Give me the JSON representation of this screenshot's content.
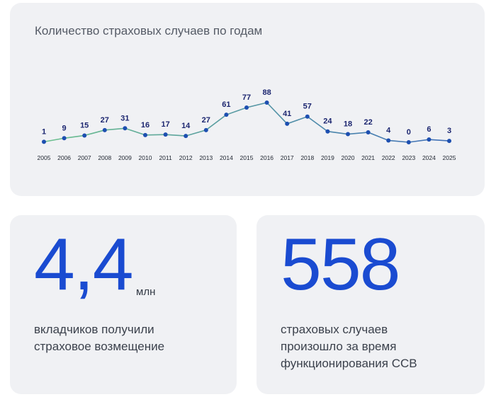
{
  "chart_data": {
    "type": "line",
    "title": "Количество страховых случаев по годам",
    "x": [
      "2005",
      "2006",
      "2007",
      "2008",
      "2009",
      "2010",
      "2011",
      "2012",
      "2013",
      "2014",
      "2015",
      "2016",
      "2017",
      "2018",
      "2019",
      "2020",
      "2021",
      "2022",
      "2023",
      "2024",
      "2025"
    ],
    "values": [
      1,
      9,
      15,
      27,
      31,
      16,
      17,
      14,
      27,
      61,
      77,
      88,
      41,
      57,
      24,
      18,
      22,
      4,
      0,
      6,
      3
    ],
    "ylim": [
      0,
      88
    ],
    "grid": false,
    "colors": {
      "line_start": "#6cc08e",
      "line_end": "#3f6fb8",
      "point": "#1d4fb0",
      "label": "#1c2670"
    }
  },
  "stat_depositors": {
    "value": "4,4",
    "unit": "млн",
    "caption_line1": "вкладчиков получили",
    "caption_line2": "страховое возмещение"
  },
  "stat_cases": {
    "value": "558",
    "caption_line1": "страховых случаев",
    "caption_line2": "произошло за время",
    "caption_line3": "функционирования ССВ"
  },
  "colors": {
    "accent": "#1a4bd1",
    "card_bg": "#f0f1f4"
  }
}
